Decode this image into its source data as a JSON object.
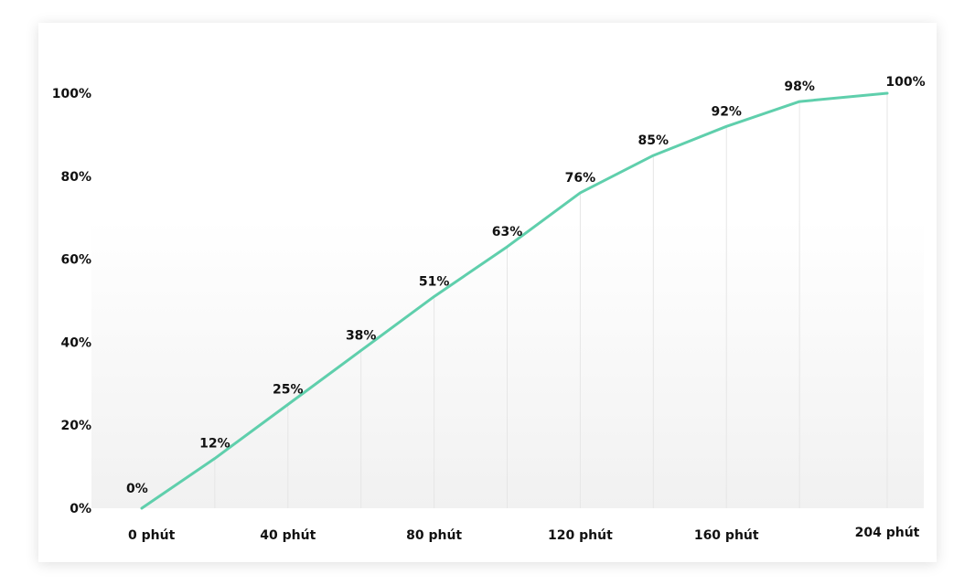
{
  "chart_data": {
    "type": "line",
    "x": [
      0,
      20,
      40,
      60,
      80,
      100,
      120,
      140,
      160,
      180,
      204
    ],
    "values": [
      0,
      12,
      25,
      38,
      51,
      63,
      76,
      85,
      92,
      98,
      100
    ],
    "data_labels": [
      "0%",
      "12%",
      "25%",
      "38%",
      "51%",
      "63%",
      "76%",
      "85%",
      "92%",
      "98%",
      "100%"
    ],
    "x_ticks": [
      {
        "value": 0,
        "label": "0 phút"
      },
      {
        "value": 40,
        "label": "40 phút"
      },
      {
        "value": 80,
        "label": "80 phút"
      },
      {
        "value": 120,
        "label": "120 phút"
      },
      {
        "value": 160,
        "label": "160 phút"
      },
      {
        "value": 204,
        "label": "204 phút"
      }
    ],
    "y_ticks": [
      {
        "value": 0,
        "label": "0%"
      },
      {
        "value": 20,
        "label": "20%"
      },
      {
        "value": 40,
        "label": "40%"
      },
      {
        "value": 60,
        "label": "60%"
      },
      {
        "value": 80,
        "label": "80%"
      },
      {
        "value": 100,
        "label": "100%"
      }
    ],
    "xlim": [
      0,
      204
    ],
    "ylim": [
      0,
      100
    ],
    "line_color": "#5fcfac",
    "grid": "vertical lines at data points",
    "legend": "none"
  }
}
